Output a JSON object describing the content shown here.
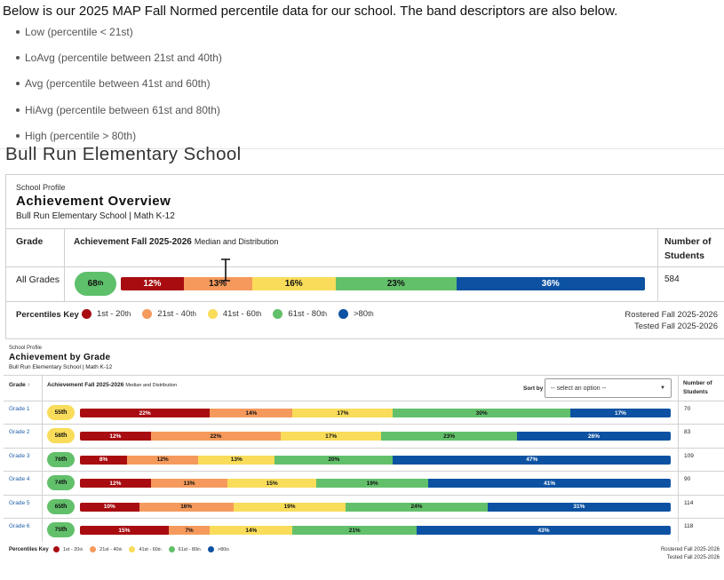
{
  "intro": {
    "text": "Below is our 2025 MAP Fall Normed percentile data for our school. The band descriptors are also below.",
    "bands": [
      "Low (percentile < 21st)",
      "LoAvg (percentile between 21st and 40th)",
      "Avg (percentile between 41st and 60th)",
      "HiAvg (percentile between 61st and 80th)",
      "High (percentile > 80th)"
    ]
  },
  "school_name": "Bull Run Elementary School",
  "colors": {
    "low": "#a80c10",
    "loavg": "#f59a5c",
    "avg": "#f9dc5a",
    "hiavg": "#62c06b",
    "high": "#0d52a2",
    "text_dark": "#111111",
    "text_light": "#ffffff",
    "link": "#1f5fa8"
  },
  "overview": {
    "profile_label": "School Profile",
    "title": "Achievement Overview",
    "subtitle": "Bull Run Elementary School | Math K-12",
    "col_grade": "Grade",
    "col_achievement": "Achievement Fall 2025-2026",
    "col_achievement_sub": "Median and Distribution",
    "col_students": "Number of Students",
    "row": {
      "grade": "All Grades",
      "median_num": "68",
      "median_sup": "th",
      "count": "584",
      "distribution": [
        12,
        13,
        16,
        23,
        36
      ]
    },
    "key_label": "Percentiles Key",
    "key": [
      {
        "label": "1st - 20",
        "sup": "th",
        "band": "low"
      },
      {
        "label": "21st - 40",
        "sup": "th",
        "band": "loavg"
      },
      {
        "label": "41st - 60",
        "sup": "th",
        "band": "avg"
      },
      {
        "label": "61st - 80",
        "sup": "th",
        "band": "hiavg"
      },
      {
        "label": ">80",
        "sup": "th",
        "band": "high"
      }
    ],
    "rostered": "Rostered Fall 2025-2026",
    "tested": "Tested Fall 2025-2026"
  },
  "by_grade": {
    "profile_label": "School Profile",
    "title": "Achievement by Grade",
    "subtitle": "Bull Run Elementary School | Math K-12",
    "col_grade": "Grade",
    "sort_arrow": "↑",
    "col_achievement": "Achievement Fall 2025-2026",
    "col_achievement_sub": "Median and Distribution",
    "sort_label": "Sort by",
    "select_placeholder": "-- select an option --",
    "col_students": "Number of Students",
    "rows": [
      {
        "grade": "Grade 1",
        "median_num": "55",
        "median_sup": "th",
        "median_band": "avg",
        "count": "70",
        "distribution": [
          22,
          14,
          17,
          30,
          17
        ]
      },
      {
        "grade": "Grade 2",
        "median_num": "58",
        "median_sup": "th",
        "median_band": "avg",
        "count": "83",
        "distribution": [
          12,
          22,
          17,
          23,
          26
        ]
      },
      {
        "grade": "Grade 3",
        "median_num": "76",
        "median_sup": "th",
        "median_band": "hiavg",
        "count": "109",
        "distribution": [
          8,
          12,
          13,
          20,
          47
        ]
      },
      {
        "grade": "Grade 4",
        "median_num": "74",
        "median_sup": "th",
        "median_band": "hiavg",
        "count": "90",
        "distribution": [
          12,
          13,
          15,
          19,
          41
        ]
      },
      {
        "grade": "Grade 5",
        "median_num": "65",
        "median_sup": "th",
        "median_band": "hiavg",
        "count": "114",
        "distribution": [
          10,
          16,
          19,
          24,
          31
        ]
      },
      {
        "grade": "Grade 6",
        "median_num": "75",
        "median_sup": "th",
        "median_band": "hiavg",
        "count": "118",
        "distribution": [
          15,
          7,
          14,
          21,
          43
        ]
      }
    ],
    "key_label": "Percentiles Key",
    "key": [
      {
        "label": "1st - 20",
        "sup": "th",
        "band": "low"
      },
      {
        "label": "21st - 40",
        "sup": "th",
        "band": "loavg"
      },
      {
        "label": "41st - 60",
        "sup": "th",
        "band": "avg"
      },
      {
        "label": "61st - 80",
        "sup": "th",
        "band": "hiavg"
      },
      {
        "label": ">80",
        "sup": "th",
        "band": "high"
      }
    ],
    "rostered": "Rostered Fall 2025-2026",
    "tested": "Tested Fall 2025-2026"
  }
}
